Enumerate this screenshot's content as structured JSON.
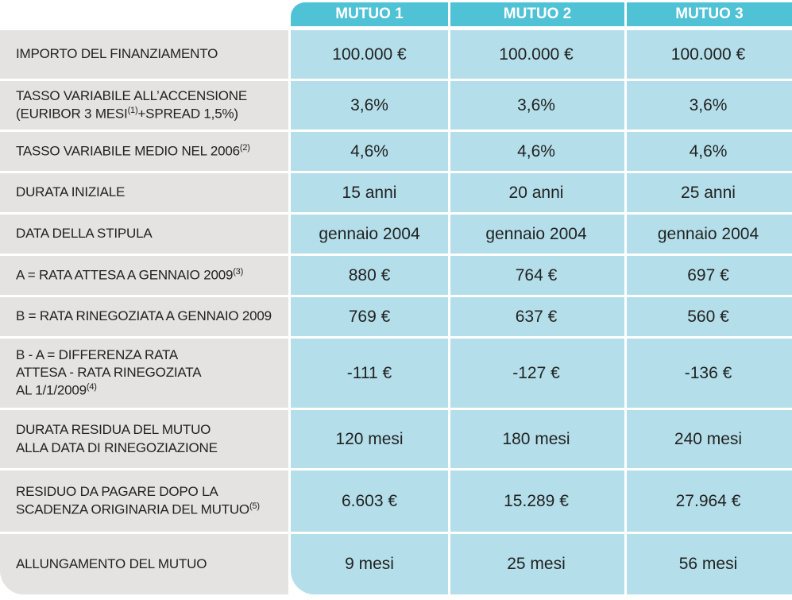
{
  "header": {
    "col1": "MUTUO 1",
    "col2": "MUTUO 2",
    "col3": "MUTUO 3"
  },
  "rows": [
    {
      "label_lines": [
        "IMPORTO DEL FINANZIAMENTO"
      ],
      "values": [
        "100.000 €",
        "100.000 €",
        "100.000 €"
      ]
    },
    {
      "label_lines": [
        "TASSO VARIABILE ALL’ACCENSIONE",
        "(EURIBOR 3 MESI(1)+SPREAD 1,5%)"
      ],
      "values": [
        "3,6%",
        "3,6%",
        "3,6%"
      ]
    },
    {
      "label_lines": [
        "TASSO VARIABILE MEDIO NEL 2006(2)"
      ],
      "values": [
        "4,6%",
        "4,6%",
        "4,6%"
      ]
    },
    {
      "label_lines": [
        "DURATA INIZIALE"
      ],
      "values": [
        "15 anni",
        "20 anni",
        "25 anni"
      ]
    },
    {
      "label_lines": [
        "DATA DELLA STIPULA"
      ],
      "values": [
        "gennaio 2004",
        "gennaio 2004",
        "gennaio 2004"
      ]
    },
    {
      "label_lines": [
        "A = RATA ATTESA A GENNAIO 2009(3)"
      ],
      "values": [
        "880 €",
        "764 €",
        "697 €"
      ]
    },
    {
      "label_lines": [
        "B = RATA RINEGOZIATA A GENNAIO 2009"
      ],
      "values": [
        "769 €",
        "637 €",
        "560 €"
      ]
    },
    {
      "label_lines": [
        "B - A =  DIFFERENZA RATA",
        "ATTESA - RATA RINEGOZIATA",
        "AL 1/1/2009(4)"
      ],
      "values": [
        "-111 €",
        "-127 €",
        "-136 €"
      ]
    },
    {
      "label_lines": [
        "DURATA RESIDUA DEL MUTUO",
        "ALLA DATA DI RINEGOZIAZIONE"
      ],
      "values": [
        "120 mesi",
        "180 mesi",
        "240 mesi"
      ]
    },
    {
      "label_lines": [
        "RESIDUO DA PAGARE DOPO LA",
        "SCADENZA ORIGINARIA DEL MUTUO(5)"
      ],
      "values": [
        "6.603 €",
        "15.289 €",
        "27.964 €"
      ]
    },
    {
      "label_lines": [
        "ALLUNGAMENTO DEL MUTUO"
      ],
      "values": [
        "9 mesi",
        "25 mesi",
        "56 mesi"
      ]
    }
  ]
}
